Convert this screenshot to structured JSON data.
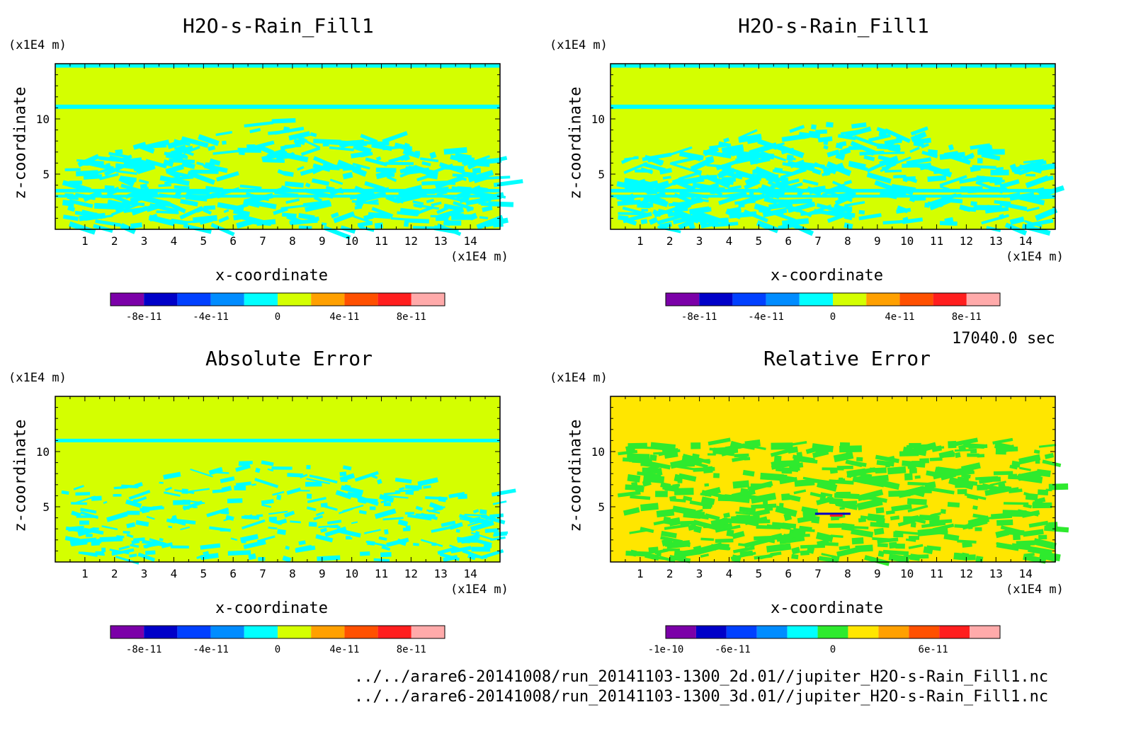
{
  "time_label": "17040.0 sec",
  "file_paths": [
    "../../arare6-20141008/run_20141103-1300_2d.01//jupiter_H2O-s-Rain_Fill1.nc",
    "../../arare6-20141008/run_20141103-1300_3d.01//jupiter_H2O-s-Rain_Fill1.nc"
  ],
  "colors": {
    "background": "#ffffff",
    "frame": "#000000",
    "levels_a": [
      "#7b00a8",
      "#0000c8",
      "#0040ff",
      "#008cff",
      "#00ffff",
      "#d4ff00",
      "#ffa000",
      "#ff5000",
      "#ff1e1e",
      "#ffaaaa"
    ],
    "levels_b": [
      "#7b00a8",
      "#0000c8",
      "#0040ff",
      "#008cff",
      "#00ffff",
      "#2eea2e",
      "#ffe600",
      "#ffa000",
      "#ff5000",
      "#ff1e1e",
      "#ffaaaa"
    ]
  },
  "chart_data": [
    {
      "type": "heatmap",
      "title": "H2O-s-Rain_Fill1",
      "xlabel": "x-coordinate",
      "ylabel": "z-coordinate",
      "xunit": "(x1E4 m)",
      "yunit": "(x1E4 m)",
      "xlim": [
        0,
        15
      ],
      "ylim": [
        0,
        15
      ],
      "xticks": [
        "1",
        "2",
        "3",
        "4",
        "5",
        "6",
        "7",
        "8",
        "9",
        "10",
        "11",
        "12",
        "13",
        "14"
      ],
      "yticks": [
        "5",
        "10"
      ],
      "background_level": "0 to 2e-11",
      "feature_level": "-2e-11 to 0",
      "colorbar": {
        "ticks": [
          "-8e-11",
          "-4e-11",
          "0",
          "4e-11",
          "8e-11"
        ],
        "range": [
          -1e-10,
          1e-10
        ],
        "levels": 10
      }
    },
    {
      "type": "heatmap",
      "title": "H2O-s-Rain_Fill1",
      "xlabel": "x-coordinate",
      "ylabel": "z-coordinate",
      "xunit": "(x1E4 m)",
      "yunit": "(x1E4 m)",
      "xlim": [
        0,
        15
      ],
      "ylim": [
        0,
        15
      ],
      "xticks": [
        "1",
        "2",
        "3",
        "4",
        "5",
        "6",
        "7",
        "8",
        "9",
        "10",
        "11",
        "12",
        "13",
        "14"
      ],
      "yticks": [
        "5",
        "10"
      ],
      "background_level": "0 to 2e-11",
      "feature_level": "-2e-11 to 0",
      "colorbar": {
        "ticks": [
          "-8e-11",
          "-4e-11",
          "0",
          "4e-11",
          "8e-11"
        ],
        "range": [
          -1e-10,
          1e-10
        ],
        "levels": 10
      }
    },
    {
      "type": "heatmap",
      "title": "Absolute Error",
      "xlabel": "x-coordinate",
      "ylabel": "z-coordinate",
      "xunit": "(x1E4 m)",
      "yunit": "(x1E4 m)",
      "xlim": [
        0,
        15
      ],
      "ylim": [
        0,
        15
      ],
      "xticks": [
        "1",
        "2",
        "3",
        "4",
        "5",
        "6",
        "7",
        "8",
        "9",
        "10",
        "11",
        "12",
        "13",
        "14"
      ],
      "yticks": [
        "5",
        "10"
      ],
      "background_level": "0 to 2e-11",
      "feature_level": "-2e-11 to 0",
      "colorbar": {
        "ticks": [
          "-8e-11",
          "-4e-11",
          "0",
          "4e-11",
          "8e-11"
        ],
        "range": [
          -1e-10,
          1e-10
        ],
        "levels": 10
      }
    },
    {
      "type": "heatmap",
      "title": "Relative Error",
      "xlabel": "x-coordinate",
      "ylabel": "z-coordinate",
      "xunit": "(x1E4 m)",
      "yunit": "(x1E4 m)",
      "xlim": [
        0,
        15
      ],
      "ylim": [
        0,
        15
      ],
      "xticks": [
        "1",
        "2",
        "3",
        "4",
        "5",
        "6",
        "7",
        "8",
        "9",
        "10",
        "11",
        "12",
        "13",
        "14"
      ],
      "yticks": [
        "5",
        "10"
      ],
      "background_level": "0 to 2e-11",
      "feature_level": "-2e-11 to 0",
      "colorbar": {
        "ticks": [
          "-1e-10",
          "-6e-11",
          "0",
          "6e-11"
        ],
        "range": [
          -1e-10,
          1e-10
        ],
        "levels": 11
      }
    }
  ]
}
